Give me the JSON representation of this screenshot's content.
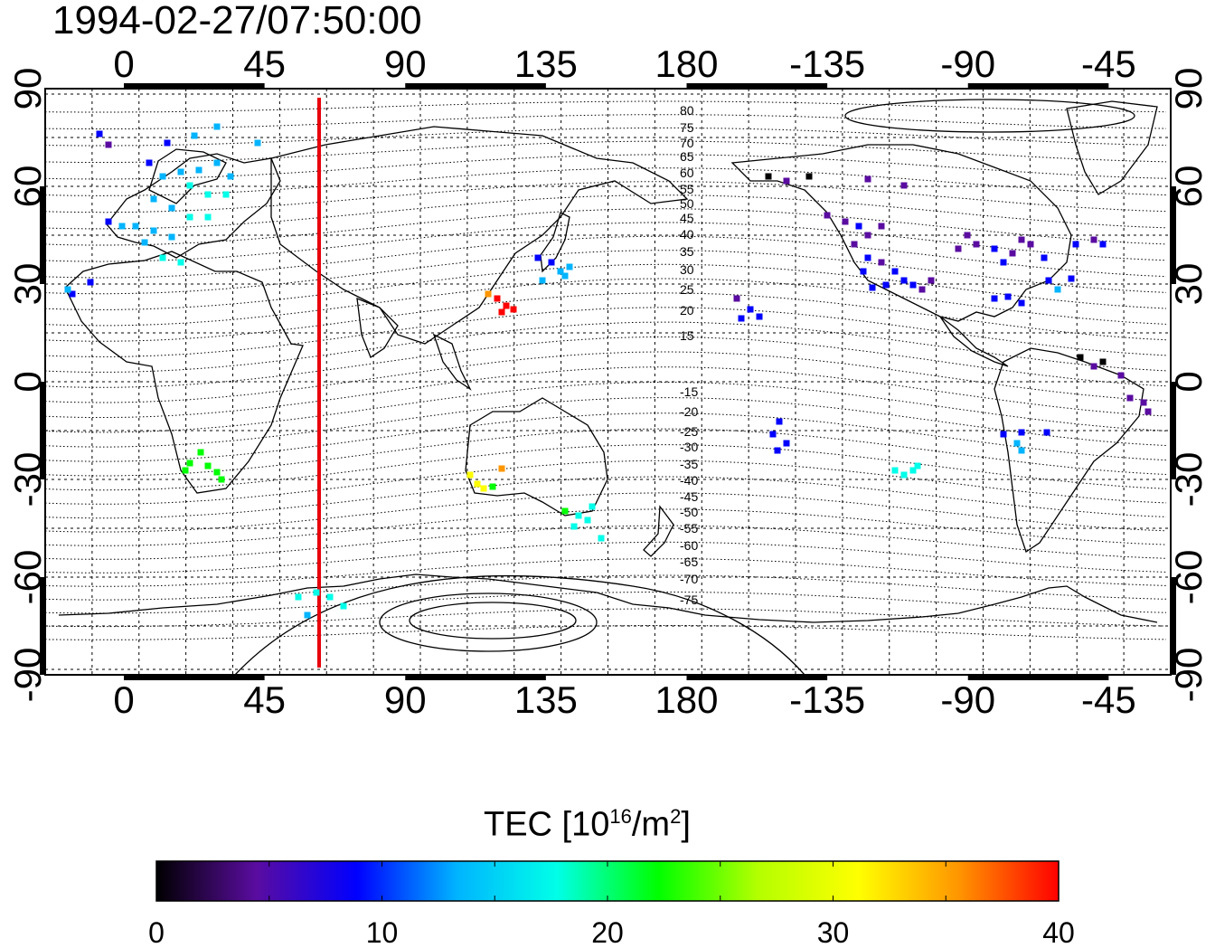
{
  "title": "1994-02-27/07:50:00",
  "map": {
    "x_ticks": [
      "0",
      "45",
      "90",
      "135",
      "180",
      "-135",
      "-90",
      "-45"
    ],
    "y_ticks_left": [
      "90",
      "60",
      "30",
      "0",
      "-30",
      "-60",
      "-90"
    ],
    "y_ticks_right": [
      "90",
      "60",
      "30",
      "0",
      "-30",
      "-60",
      "-90"
    ],
    "contour_labels": [
      "80",
      "75",
      "70",
      "65",
      "60",
      "55",
      "50",
      "45",
      "40",
      "35",
      "30",
      "25",
      "20",
      "15",
      "-15",
      "-20",
      "-25",
      "-30",
      "-35",
      "-40",
      "-45",
      "-50",
      "-55",
      "-60",
      "-65",
      "-70",
      "-75"
    ],
    "meridian_line_color": "#e8000b"
  },
  "colorbar": {
    "label_prefix": "TEC  [10",
    "label_exp": "16",
    "label_mid": "/m",
    "label_exp2": "2",
    "label_suffix": "]",
    "ticks": [
      "0",
      "10",
      "20",
      "30",
      "40"
    ],
    "range": [
      0,
      40
    ],
    "colormap": [
      "#000000",
      "#5a0ca0",
      "#0000ff",
      "#00b4ff",
      "#00ffe8",
      "#00ff00",
      "#b4ff00",
      "#ffff00",
      "#ff9600",
      "#ff0000"
    ]
  }
}
